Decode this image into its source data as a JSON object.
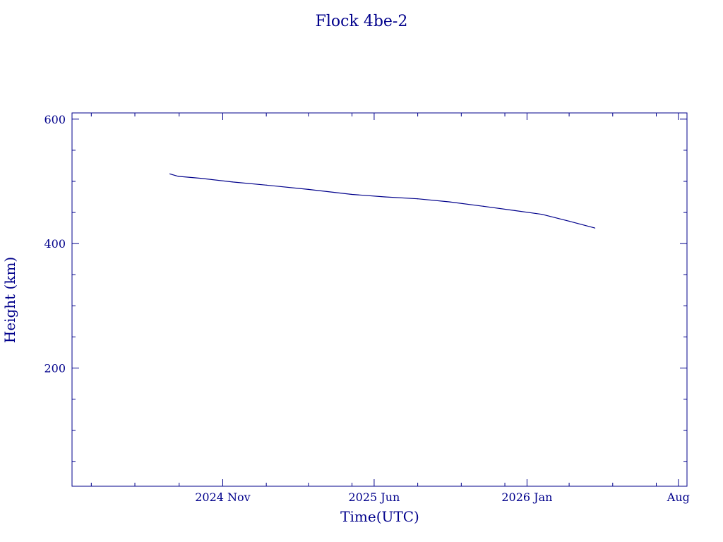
{
  "colors": {
    "foreground": "#00008b",
    "background": "#ffffff"
  },
  "chart_data": {
    "type": "line",
    "title": "Flock 4be-2",
    "xlabel": "Time(UTC)",
    "ylabel": "Height (km)",
    "x_axis": {
      "type": "date",
      "range": [
        "2024-04-04",
        "2026-08-13"
      ],
      "major_ticks": [
        {
          "date": "2024-11-01",
          "label": "2024 Nov"
        },
        {
          "date": "2025-06-01",
          "label": "2025 Jun"
        },
        {
          "date": "2026-01-01",
          "label": "2026 Jan"
        },
        {
          "date": "2026-08-01",
          "label": "Aug"
        }
      ],
      "minor_ticks": [
        "2024-05-01",
        "2024-07-01",
        "2024-09-01",
        "2025-01-01",
        "2025-03-01",
        "2025-05-01",
        "2025-08-01",
        "2025-10-01",
        "2025-12-01",
        "2026-03-01",
        "2026-05-01",
        "2026-07-01"
      ]
    },
    "y_axis": {
      "range": [
        10,
        610
      ],
      "major_ticks": [
        200,
        400,
        600
      ],
      "minor_ticks": [
        50,
        100,
        150,
        250,
        300,
        350,
        450,
        500,
        550
      ]
    },
    "grid": false,
    "series": [
      {
        "color": "#00008b",
        "x": [
          "2024-08-19",
          "2024-08-31",
          "2024-10-01",
          "2024-11-15",
          "2025-01-01",
          "2025-03-01",
          "2025-05-01",
          "2025-06-16",
          "2025-08-01",
          "2025-09-15",
          "2025-11-01",
          "2025-12-15",
          "2026-01-22",
          "2026-03-01",
          "2026-04-06"
        ],
        "y": [
          512,
          508,
          505,
          499,
          494,
          487,
          479,
          475,
          472,
          467,
          460,
          453,
          447,
          436,
          425
        ]
      }
    ]
  }
}
